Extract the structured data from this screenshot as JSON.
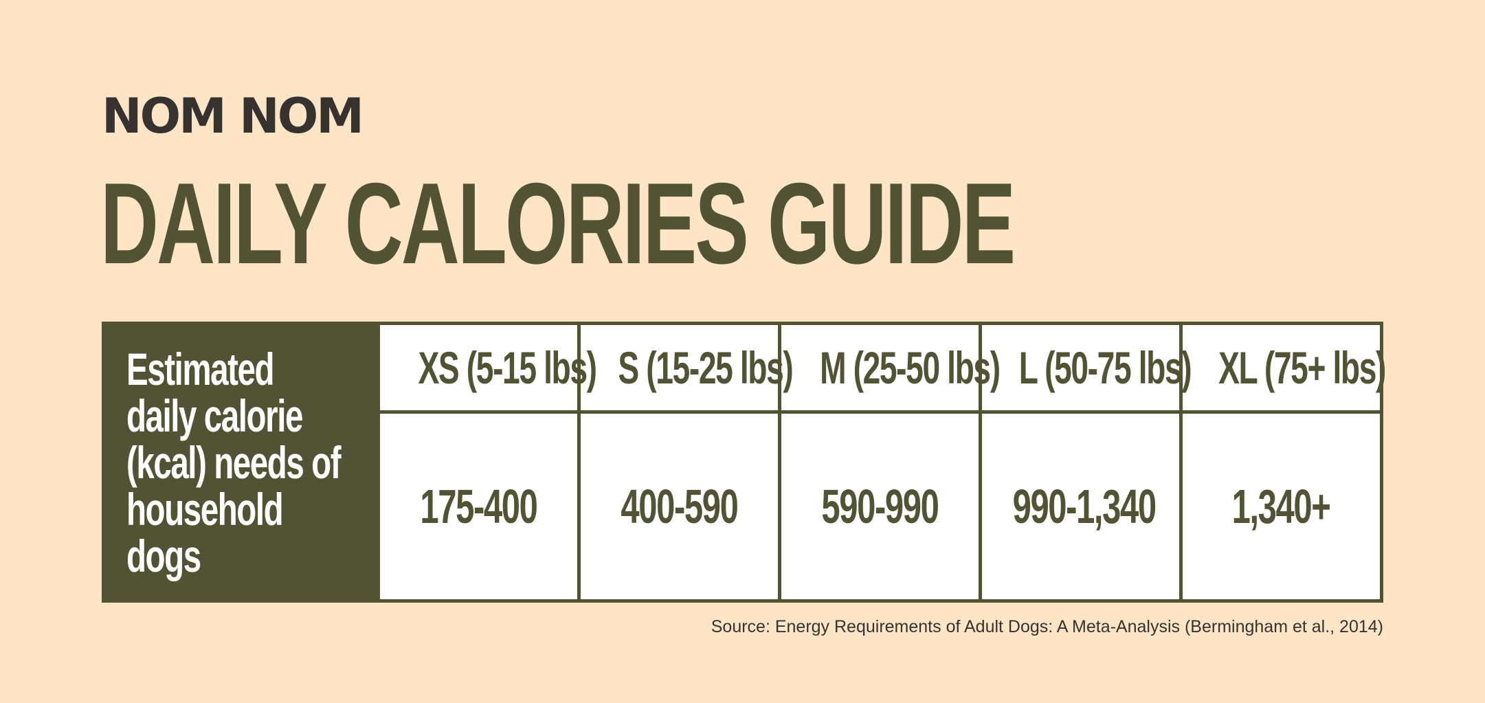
{
  "brand": "NOM NOM",
  "title": "DAILY CALORIES GUIDE",
  "colors": {
    "background": "#FEE5C6",
    "primary": "#525234",
    "brand": "#353230",
    "cell": "#FFFFFF"
  },
  "chart_data": {
    "type": "table",
    "row_header": "Estimated\ndaily calorie\n(kcal) needs of\nhousehold dogs",
    "columns": [
      "XS (5-15 lbs)",
      "S (15-25 lbs)",
      "M (25-50 lbs)",
      "L (50-75 lbs)",
      "XL (75+ lbs)"
    ],
    "values": [
      "175-400",
      "400-590",
      "590-990",
      "990-1,340",
      "1,340+"
    ]
  },
  "source": "Source: Energy Requirements of Adult Dogs: A Meta-Analysis (Bermingham et al., 2014)"
}
